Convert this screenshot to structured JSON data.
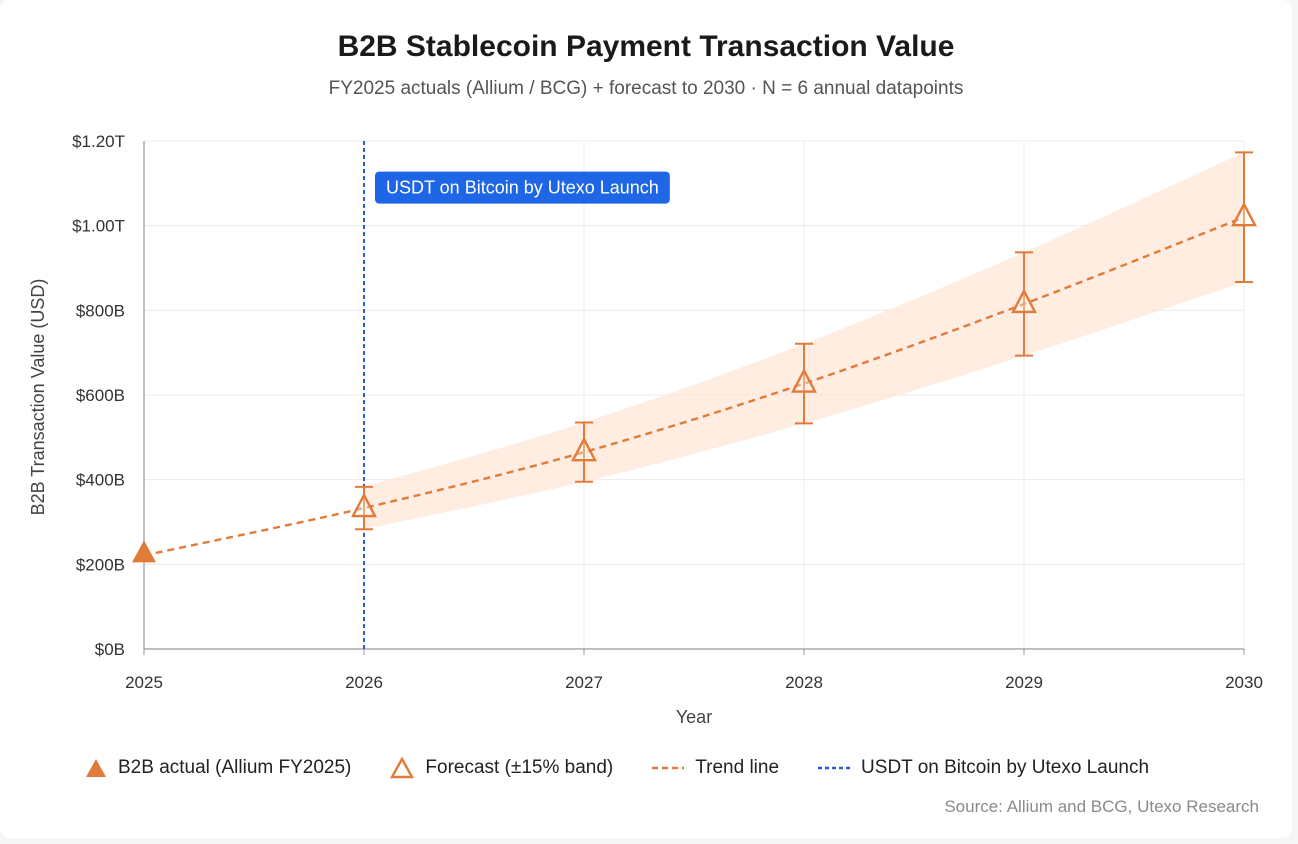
{
  "chart_data": {
    "type": "line",
    "title": "B2B Stablecoin Payment Transaction Value",
    "subtitle": "FY2025 actuals (Allium / BCG) + forecast to 2030 · N = 6 annual datapoints",
    "xlabel": "Year",
    "ylabel": "B2B Transaction Value (USD)",
    "x": [
      2025,
      2026,
      2027,
      2028,
      2029,
      2030
    ],
    "x_ticks": [
      "2025",
      "2026",
      "2027",
      "2028",
      "2029",
      "2030"
    ],
    "ylim": [
      0,
      1200
    ],
    "y_unit": "billions USD",
    "y_ticks": [
      {
        "value": 0,
        "label": "$0B"
      },
      {
        "value": 200,
        "label": "$200B"
      },
      {
        "value": 400,
        "label": "$400B"
      },
      {
        "value": 600,
        "label": "$600B"
      },
      {
        "value": 800,
        "label": "$800B"
      },
      {
        "value": 1000,
        "label": "$1.00T"
      },
      {
        "value": 1200,
        "label": "$1.20T"
      }
    ],
    "grid": true,
    "series": [
      {
        "name": "B2B actual (Allium FY2025)",
        "type": "scatter",
        "marker": "filled-triangle",
        "color": "#e07b39",
        "points": [
          {
            "x": 2025,
            "y": 226
          }
        ]
      },
      {
        "name": "Forecast (±15% band)",
        "type": "scatter",
        "marker": "open-triangle",
        "color": "#e07b39",
        "band_color": "#fde7d6",
        "points": [
          {
            "x": 2026,
            "y": 333,
            "low": 283,
            "high": 383
          },
          {
            "x": 2027,
            "y": 465,
            "low": 395,
            "high": 535
          },
          {
            "x": 2028,
            "y": 627,
            "low": 533,
            "high": 721
          },
          {
            "x": 2029,
            "y": 815,
            "low": 693,
            "high": 937
          },
          {
            "x": 2030,
            "y": 1020,
            "low": 867,
            "high": 1173
          }
        ]
      },
      {
        "name": "Trend line",
        "type": "line",
        "style": "dashed",
        "color": "#e07b39",
        "points": [
          {
            "x": 2025,
            "y": 221
          },
          {
            "x": 2026,
            "y": 333
          },
          {
            "x": 2027,
            "y": 465
          },
          {
            "x": 2028,
            "y": 627
          },
          {
            "x": 2029,
            "y": 815
          },
          {
            "x": 2030,
            "y": 1020
          }
        ]
      },
      {
        "name": "USDT on Bitcoin by Utexo Launch",
        "type": "vline",
        "style": "dashed",
        "color": "#2a5bd7",
        "x": 2026
      }
    ],
    "annotations": [
      {
        "text": "USDT on Bitcoin by Utexo Launch",
        "x": 2026,
        "y": 1090,
        "bg": "#1e66e6"
      }
    ],
    "legend_position": "bottom"
  },
  "source": "Source: Allium and BCG, Utexo Research"
}
